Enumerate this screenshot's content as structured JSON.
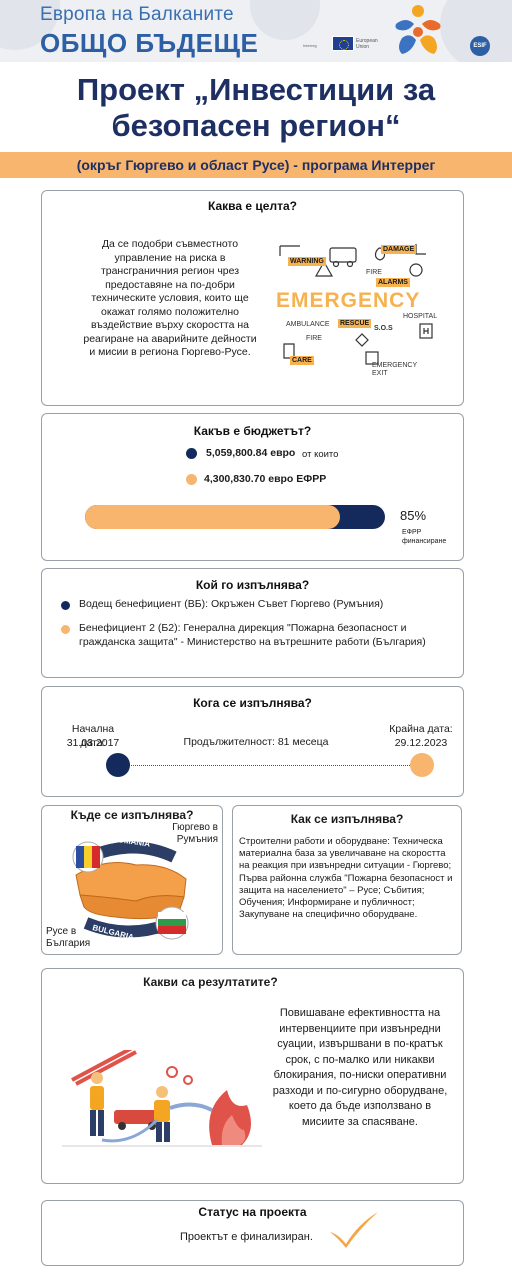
{
  "header": {
    "subtitle": "Европа на Балканите",
    "brand": "ОБЩО БЪДЕЩЕ",
    "partner_text": "Interreg",
    "eu_text": "European Union",
    "esif_text": "ESIF"
  },
  "title": {
    "line1": "Проект „Инвестиции за",
    "line2": "безопасен регион“"
  },
  "band": "(окръг Гюргево и област Русе) - програма Интеррег",
  "goal": {
    "heading": "Каква е целта?",
    "text": "Да се подобри съвместното управление на риска в трансграничния регион чрез предоставяне на по-добри техническите условия, които ще окажат голямо положително въздействие върху скоростта на реагиране на аварийните дейности и мисии в региона Гюргево-Русе.",
    "graphic": {
      "word": "EMERGENCY",
      "tags": [
        "DAMAGE",
        "WARNING",
        "FIRE",
        "ALARMS",
        "HOSPITAL",
        "AMBULANCE",
        "RESCUE",
        "S.O.S",
        "FIRE",
        "CARE",
        "EMERGENCY EXIT"
      ]
    }
  },
  "budget": {
    "heading": "Какъв е бюджетът?",
    "total_value": "5,059,800.84 евро",
    "total_suffix": "от които",
    "erdf_value": "4,300,830.70 евро ЕФРР",
    "percent": "85%",
    "percent_fraction": 0.85,
    "caption": "ЕФРР финансиране",
    "colors": {
      "navy": "#152a5c",
      "orange": "#f7b56e"
    }
  },
  "who": {
    "heading": "Кой го изпълнява?",
    "items": [
      "Водещ бенефициент (ВБ): Окръжен Съвет Гюргево (Румъния)",
      "Бенефициент 2 (Б2): Генерална дирекция \"Пожарна безопасност и гражданска защита\" - Министерство на вътрешните работи (България)"
    ]
  },
  "when": {
    "heading": "Кога се изпълнява?",
    "start_label": "Начална дата:",
    "start_date": "31.03.2017",
    "duration": "Продължителност: 81 месеца",
    "end_label": "Крайна дата:",
    "end_date": "29.12.2023"
  },
  "where": {
    "heading": "Къде се изпълнява?",
    "ro_label": "Гюргево в Румъния",
    "bg_label": "Русе в България",
    "map_ro": "ROMANIA",
    "map_bg": "BULGARIA"
  },
  "how": {
    "heading": "Как се изпълнява?",
    "text": "Строителни работи и оборудване: Техническа материална база за увеличаване на скоростта на реакция при извънредни ситуации - Гюргево; Първа районна служба \"Пожарна безопасност и защита на населението\" – Русе; Събития; Обучения; Информиране и публичност; Закупуване на специфично оборудване."
  },
  "results": {
    "heading": "Какви са резултатите?",
    "text": "Повишаване ефективността на интервенциите при извънредни суации, извършвани в по-кратък срок, с по-малко или никакви блокирания, по-ниски оперативни разходи и по-сигурно оборудване, което да бъде използвано в мисиите за спасяване."
  },
  "status": {
    "heading": "Статус на проекта",
    "text": "Проектът е финализиран."
  }
}
